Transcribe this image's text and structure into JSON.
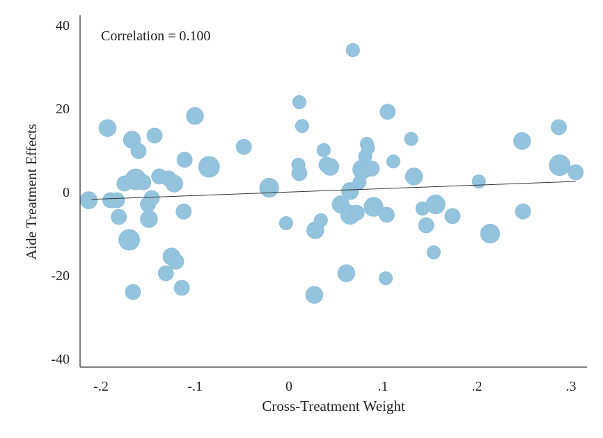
{
  "chart_data": {
    "type": "scatter",
    "annotation": "Correlation = 0.100",
    "xlabel": "Cross-Treatment Weight",
    "ylabel": "Aide Treatment Effects",
    "xlim": [
      -0.22,
      0.31
    ],
    "ylim": [
      -42,
      42
    ],
    "x_ticks": [
      -0.2,
      -0.1,
      0,
      0.1,
      0.2,
      0.3
    ],
    "x_tick_labels": [
      "-.2",
      "-.1",
      "0",
      ".1",
      ".2",
      ".3"
    ],
    "y_ticks": [
      40,
      20,
      0,
      -20,
      -40
    ],
    "y_tick_labels": [
      "40",
      "20",
      "0",
      "-20",
      "-40"
    ],
    "fit_line": {
      "x": [
        -0.21,
        0.305
      ],
      "y": [
        -1.8,
        2.5
      ]
    },
    "marker_color": "#93c3dd",
    "points": [
      {
        "x": -0.213,
        "y": -2,
        "w": 2
      },
      {
        "x": -0.193,
        "y": 15.3,
        "w": 2
      },
      {
        "x": -0.19,
        "y": -2,
        "w": 1.5
      },
      {
        "x": -0.183,
        "y": -2,
        "w": 1.5
      },
      {
        "x": -0.181,
        "y": -6,
        "w": 1.5
      },
      {
        "x": -0.175,
        "y": 2,
        "w": 1.5
      },
      {
        "x": -0.17,
        "y": -11.5,
        "w": 3
      },
      {
        "x": -0.167,
        "y": 12.5,
        "w": 2
      },
      {
        "x": -0.166,
        "y": -24,
        "w": 1.5
      },
      {
        "x": -0.163,
        "y": 3,
        "w": 3
      },
      {
        "x": -0.16,
        "y": 9.8,
        "w": 1.5
      },
      {
        "x": -0.155,
        "y": 2.3,
        "w": 1.5
      },
      {
        "x": -0.15,
        "y": -3,
        "w": 1.5
      },
      {
        "x": -0.149,
        "y": -6.5,
        "w": 2
      },
      {
        "x": -0.146,
        "y": -1.5,
        "w": 1.5
      },
      {
        "x": -0.143,
        "y": 13.5,
        "w": 1.5
      },
      {
        "x": -0.138,
        "y": 3.7,
        "w": 1.5
      },
      {
        "x": -0.131,
        "y": -19.5,
        "w": 1.5
      },
      {
        "x": -0.128,
        "y": 3.2,
        "w": 1.5
      },
      {
        "x": -0.125,
        "y": -15.5,
        "w": 2
      },
      {
        "x": -0.122,
        "y": 2,
        "w": 2
      },
      {
        "x": -0.12,
        "y": -16.7,
        "w": 1.5
      },
      {
        "x": -0.114,
        "y": -23,
        "w": 1.5
      },
      {
        "x": -0.112,
        "y": -4.7,
        "w": 1.5
      },
      {
        "x": -0.111,
        "y": 7.7,
        "w": 1.5
      },
      {
        "x": -0.1,
        "y": 18.2,
        "w": 2
      },
      {
        "x": -0.085,
        "y": 6,
        "w": 3
      },
      {
        "x": -0.048,
        "y": 10.8,
        "w": 1.5
      },
      {
        "x": -0.021,
        "y": 1,
        "w": 2.5
      },
      {
        "x": -0.003,
        "y": -7.5,
        "w": 1
      },
      {
        "x": 0.01,
        "y": 6.5,
        "w": 1
      },
      {
        "x": 0.011,
        "y": 4.5,
        "w": 1.5
      },
      {
        "x": 0.011,
        "y": 21.5,
        "w": 1
      },
      {
        "x": 0.014,
        "y": 15.8,
        "w": 1
      },
      {
        "x": 0.027,
        "y": -24.7,
        "w": 2
      },
      {
        "x": 0.028,
        "y": -9.2,
        "w": 2
      },
      {
        "x": 0.034,
        "y": -6.8,
        "w": 1
      },
      {
        "x": 0.037,
        "y": 10,
        "w": 1
      },
      {
        "x": 0.04,
        "y": 6.5,
        "w": 1.5
      },
      {
        "x": 0.044,
        "y": 6,
        "w": 2
      },
      {
        "x": 0.055,
        "y": -3,
        "w": 2
      },
      {
        "x": 0.061,
        "y": -19.5,
        "w": 2
      },
      {
        "x": 0.065,
        "y": 0.2,
        "w": 2
      },
      {
        "x": 0.065,
        "y": -5.5,
        "w": 2.5
      },
      {
        "x": 0.068,
        "y": 34,
        "w": 1
      },
      {
        "x": 0.072,
        "y": -5,
        "w": 1.5
      },
      {
        "x": 0.075,
        "y": 2.3,
        "w": 1
      },
      {
        "x": 0.078,
        "y": 5.4,
        "w": 2.5
      },
      {
        "x": 0.081,
        "y": 8.5,
        "w": 1
      },
      {
        "x": 0.083,
        "y": 11.5,
        "w": 1
      },
      {
        "x": 0.084,
        "y": 10.5,
        "w": 1
      },
      {
        "x": 0.088,
        "y": 5.6,
        "w": 1.5
      },
      {
        "x": 0.09,
        "y": -3.6,
        "w": 2.5
      },
      {
        "x": 0.103,
        "y": -20.7,
        "w": 1
      },
      {
        "x": 0.104,
        "y": -5.5,
        "w": 1.5
      },
      {
        "x": 0.105,
        "y": 19.2,
        "w": 1.5
      },
      {
        "x": 0.111,
        "y": 7.3,
        "w": 1
      },
      {
        "x": 0.13,
        "y": 12.7,
        "w": 1
      },
      {
        "x": 0.133,
        "y": 3.7,
        "w": 2
      },
      {
        "x": 0.142,
        "y": -4,
        "w": 1
      },
      {
        "x": 0.146,
        "y": -8,
        "w": 1.5
      },
      {
        "x": 0.154,
        "y": -14.5,
        "w": 1
      },
      {
        "x": 0.156,
        "y": -3,
        "w": 2.5
      },
      {
        "x": 0.174,
        "y": -5.8,
        "w": 1.5
      },
      {
        "x": 0.202,
        "y": 2.5,
        "w": 1
      },
      {
        "x": 0.214,
        "y": -10,
        "w": 2.5
      },
      {
        "x": 0.248,
        "y": 12.2,
        "w": 2
      },
      {
        "x": 0.249,
        "y": -4.7,
        "w": 1.5
      },
      {
        "x": 0.287,
        "y": 15.5,
        "w": 1.5
      },
      {
        "x": 0.288,
        "y": 6.4,
        "w": 3
      },
      {
        "x": 0.305,
        "y": 4.7,
        "w": 1.5
      }
    ]
  }
}
